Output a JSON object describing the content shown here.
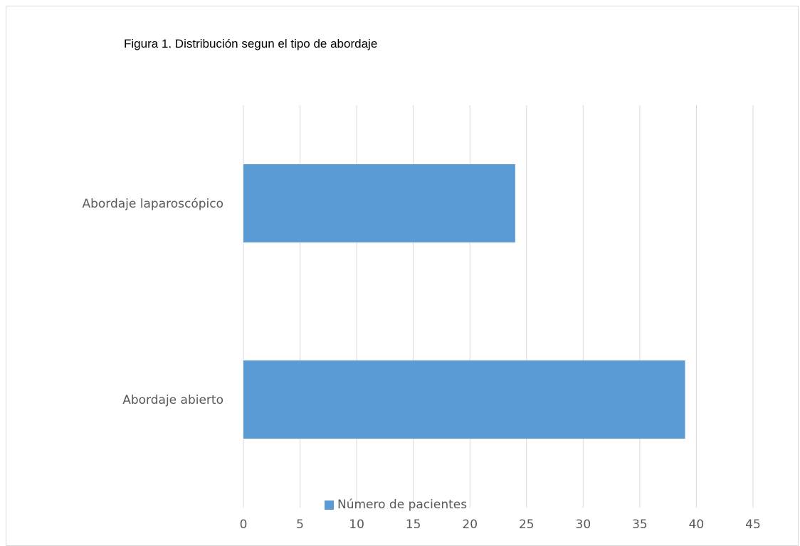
{
  "chart_data": {
    "type": "bar",
    "orientation": "horizontal",
    "title": "Figura 1. Distribución segun el tipo de abordaje",
    "categories": [
      "Abordaje laparoscópico",
      "Abordaje abierto"
    ],
    "series": [
      {
        "name": "Número de pacientes",
        "values": [
          24,
          39
        ],
        "color": "#5b9bd5"
      }
    ],
    "xlim": [
      0,
      45
    ],
    "xticks": [
      "0",
      "5",
      "10",
      "15",
      "20",
      "25",
      "30",
      "35",
      "40",
      "45"
    ],
    "grid": true,
    "legend_position": "bottom",
    "xlabel": "",
    "ylabel": ""
  }
}
